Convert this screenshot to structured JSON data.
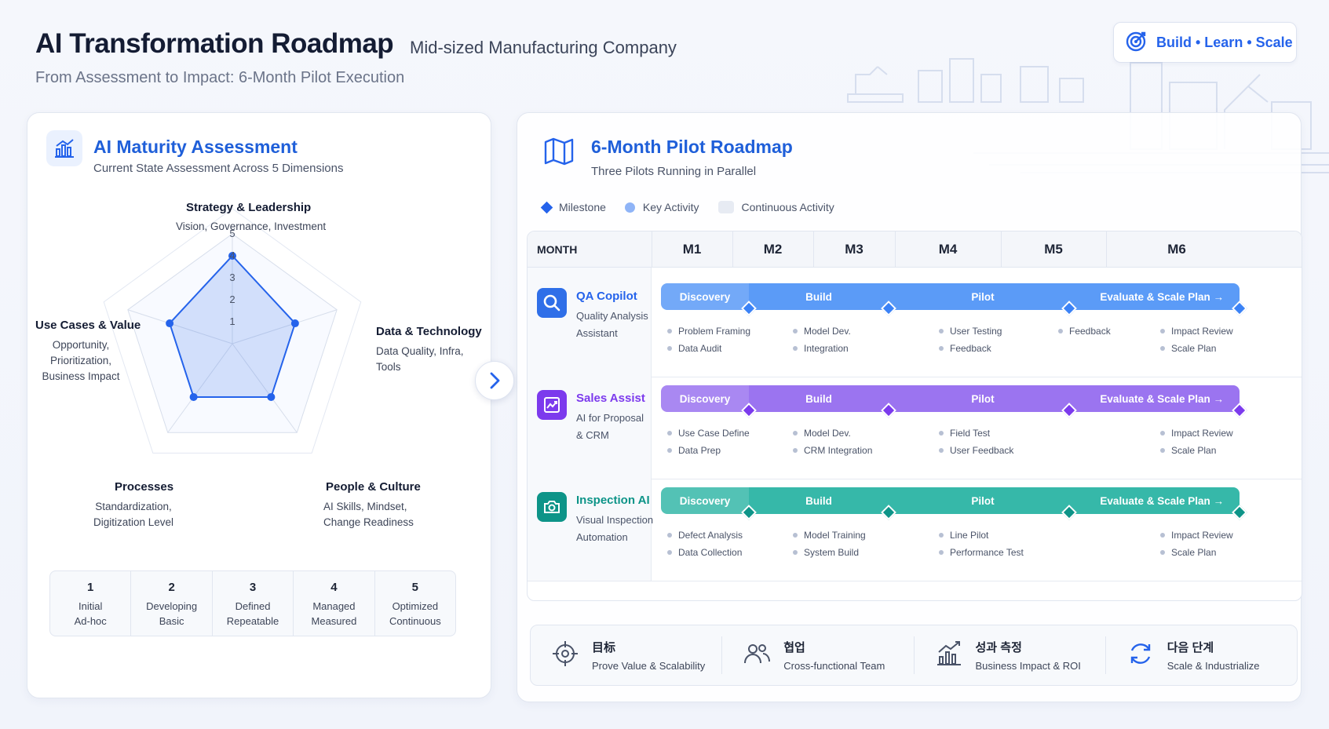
{
  "header": {
    "title": "AI Transformation Roadmap",
    "subtitle": "Mid-sized Manufacturing Company",
    "tagline": "From Assessment to Impact: 6-Month Pilot Execution",
    "badge": "Build • Learn • Scale"
  },
  "assessment": {
    "title": "AI Maturity Assessment",
    "subtitle": "Current State Assessment Across 5 Dimensions",
    "axes": [
      {
        "label": "Strategy & Leadership",
        "desc": [
          "Vision, Governance, Investment"
        ],
        "score": 4
      },
      {
        "label": "Data & Technology",
        "desc": [
          "Data Quality, Infra,",
          "Tools"
        ],
        "score": 3
      },
      {
        "label": "People & Culture",
        "desc": [
          "AI Skills, Mindset,",
          "Change Readiness"
        ],
        "score": 3
      },
      {
        "label": "Processes",
        "desc": [
          "Standardization,",
          "Digitization Level"
        ],
        "score": 3
      },
      {
        "label": "Use Cases & Value",
        "desc": [
          "Opportunity,",
          "Prioritization,",
          "Business Impact"
        ],
        "score": 3
      }
    ],
    "ticks": [
      "1",
      "2",
      "3",
      "4",
      "5"
    ],
    "scale": [
      {
        "num": "1",
        "line1": "Initial",
        "line2": "Ad-hoc"
      },
      {
        "num": "2",
        "line1": "Developing",
        "line2": "Basic"
      },
      {
        "num": "3",
        "line1": "Defined",
        "line2": "Repeatable"
      },
      {
        "num": "4",
        "line1": "Managed",
        "line2": "Measured"
      },
      {
        "num": "5",
        "line1": "Optimized",
        "line2": "Continuous"
      }
    ],
    "accent": "#2563eb"
  },
  "roadmap": {
    "title": "6-Month Pilot Roadmap",
    "subtitle": "Three Pilots Running in Parallel",
    "legend": {
      "milestone": "Milestone",
      "key_activity": "Key Activity",
      "continuous": "Continuous Activity"
    },
    "month_label": "MONTH",
    "months": [
      "M1",
      "M2",
      "M3",
      "M4",
      "M5",
      "M6"
    ],
    "phases": [
      "Discovery",
      "Build",
      "Pilot",
      "Evaluate & Scale Plan →"
    ],
    "pilots": [
      {
        "name": "QA Copilot",
        "desc": [
          "Quality Analysis",
          "Assistant"
        ],
        "color": "#3b82f6",
        "bar": "#5b9bf7",
        "light": "#eaf1fe",
        "acts": [
          [
            "Problem Framing",
            "Data Audit"
          ],
          [
            "Model Dev.",
            "Integration"
          ],
          [
            "User Testing",
            "Feedback"
          ],
          [
            "Feedback"
          ],
          [
            "Impact Review",
            "Scale Plan"
          ]
        ]
      },
      {
        "name": "Sales Assist",
        "desc": [
          "AI for Proposal",
          "& CRM"
        ],
        "color": "#7c3aed",
        "bar": "#9b74f0",
        "light": "#f1ebfe",
        "acts": [
          [
            "Use Case Define",
            "Data Prep"
          ],
          [
            "Model Dev.",
            "CRM Integration"
          ],
          [
            "Field Test",
            "User Feedback"
          ],
          [],
          [
            "Impact Review",
            "Scale Plan"
          ]
        ]
      },
      {
        "name": "Inspection AI",
        "desc": [
          "Visual Inspection",
          "Automation"
        ],
        "color": "#0d9488",
        "bar": "#36b8a9",
        "light": "#e5f6f3",
        "acts": [
          [
            "Defect Analysis",
            "Data Collection"
          ],
          [
            "Model Training",
            "System Build"
          ],
          [
            "Line Pilot",
            "Performance Test"
          ],
          [],
          [
            "Impact Review",
            "Scale Plan"
          ]
        ]
      }
    ],
    "summary": [
      {
        "icon": "target-icon",
        "title": "目标",
        "sub": "Prove Value & Scalability"
      },
      {
        "icon": "team-icon",
        "title": "협업",
        "sub": "Cross-functional Team"
      },
      {
        "icon": "growth-chart-icon",
        "title": "성과 측정",
        "sub": "Business Impact & ROI"
      },
      {
        "icon": "cycle-icon",
        "title": "다음 단계",
        "sub": "Scale & Industrialize"
      }
    ]
  }
}
